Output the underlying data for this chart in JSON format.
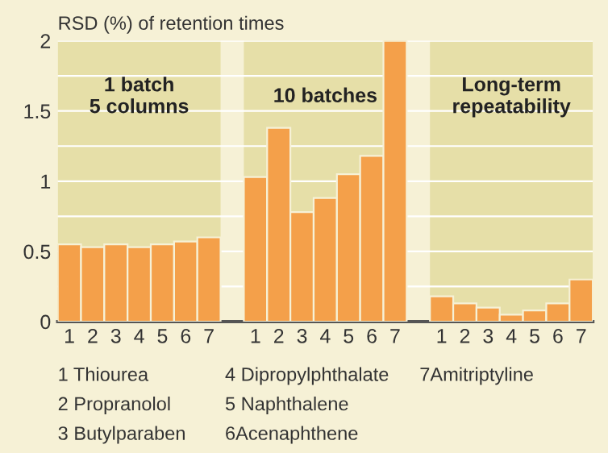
{
  "chart_data": {
    "type": "bar",
    "ylabel": "RSD (%) of retention times",
    "categories": [
      "1",
      "2",
      "3",
      "4",
      "5",
      "6",
      "7",
      null,
      "1",
      "2",
      "3",
      "4",
      "5",
      "6",
      "7",
      null,
      "1",
      "2",
      "3",
      "4",
      "5",
      "6",
      "7"
    ],
    "values": [
      0.55,
      0.53,
      0.55,
      0.53,
      0.55,
      0.57,
      0.6,
      null,
      1.03,
      1.38,
      0.78,
      0.88,
      1.05,
      1.18,
      2.0,
      null,
      0.18,
      0.13,
      0.1,
      0.05,
      0.08,
      0.13,
      0.3
    ],
    "color": "#f4a04a",
    "ylim": [
      0,
      2
    ],
    "yticks": [
      0,
      {
        "value": 0.25,
        "label": null
      },
      0.5,
      {
        "value": 0.75,
        "label": null
      },
      1,
      {
        "value": 1.25,
        "label": null
      },
      1.5,
      {
        "value": 1.75,
        "label": null
      },
      2
    ],
    "grid": "y",
    "annotations": [
      "1 batch\n5 columns",
      "10 batches",
      "Long-term\nrepeatability",
      "1 Thiourea",
      "2 Propranolol",
      "3 Butylparaben",
      "4 Dipropylphthalate",
      "5 Naphthalene",
      "6Acenaphthene",
      "7Amitriptyline"
    ]
  }
}
